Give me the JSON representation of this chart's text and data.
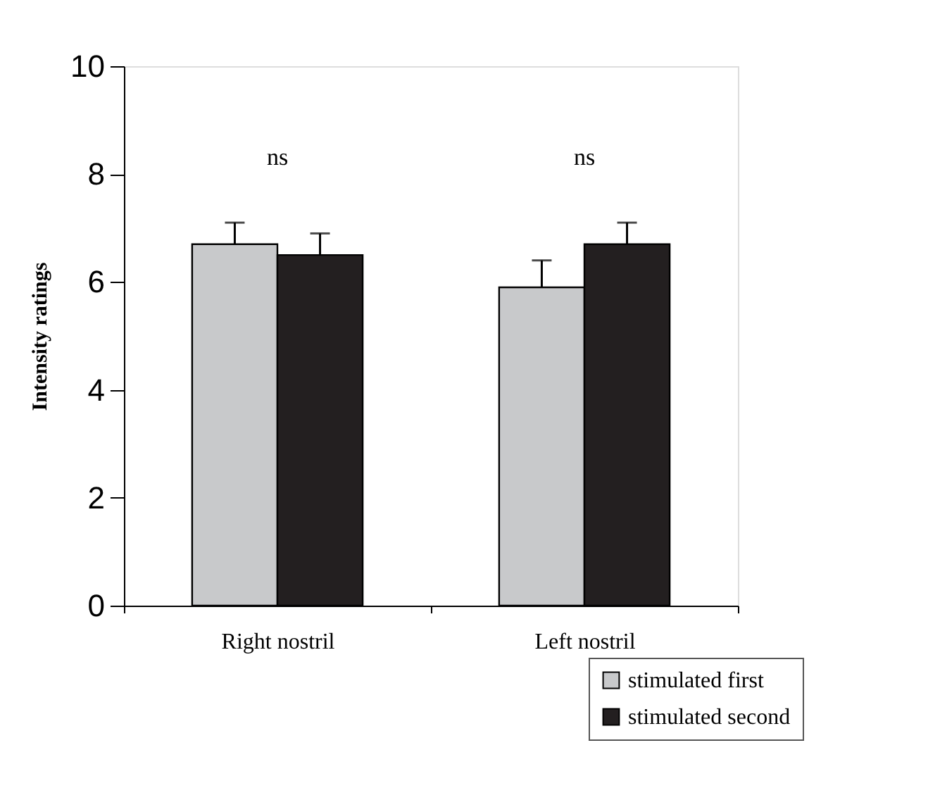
{
  "chart_data": {
    "type": "bar",
    "ylabel": "Intensity ratings",
    "categories": [
      "Right nostril",
      "Left nostril"
    ],
    "series": [
      {
        "name": "stimulated first",
        "color": "#c8c9cb",
        "values": [
          6.7,
          5.9
        ],
        "errors": [
          0.4,
          0.5
        ]
      },
      {
        "name": "stimulated second",
        "color": "#231f20",
        "values": [
          6.5,
          6.7
        ],
        "errors": [
          0.4,
          0.4
        ]
      }
    ],
    "ylim": [
      0,
      10
    ],
    "yticks": [
      0,
      2,
      4,
      6,
      8,
      10
    ],
    "grid": false,
    "legend": "bottom right",
    "annotations": [
      "ns",
      "ns"
    ]
  }
}
